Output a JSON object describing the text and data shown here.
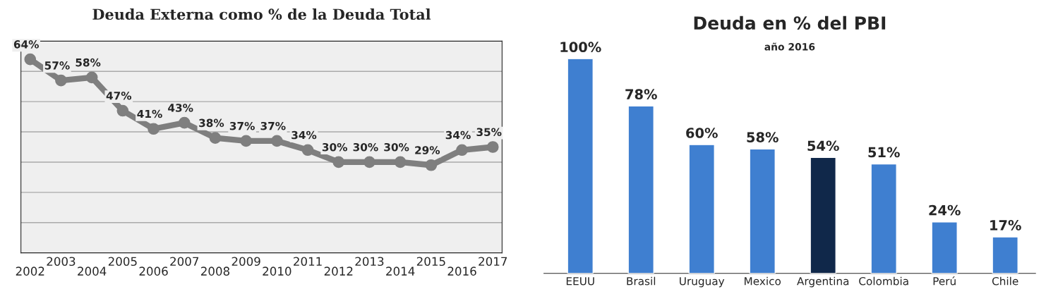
{
  "chart_data": [
    {
      "type": "line",
      "title": "Deuda Externa como % de la Deuda Total",
      "categories": [
        "2002",
        "2003",
        "2004",
        "2005",
        "2006",
        "2007",
        "2008",
        "2009",
        "2010",
        "2011",
        "2012",
        "2013",
        "2014",
        "2015",
        "2016",
        "2017"
      ],
      "series": [
        {
          "color": "#7f7f7f",
          "values": [
            64,
            57,
            58,
            47,
            41,
            43,
            38,
            37,
            37,
            34,
            30,
            30,
            30,
            29,
            34,
            35
          ],
          "value_labels": [
            "64%",
            "57%",
            "58%",
            "47%",
            "41%",
            "43%",
            "38%",
            "37%",
            "37%",
            "34%",
            "30%",
            "30%",
            "30%",
            "29%",
            "34%",
            "35%"
          ]
        }
      ],
      "ylim": [
        0,
        70
      ],
      "yticks": [
        {
          "value": 0,
          "label": null
        },
        {
          "value": 10,
          "label": null
        },
        {
          "value": 20,
          "label": null
        },
        {
          "value": 30,
          "label": null
        },
        {
          "value": 40,
          "label": null
        },
        {
          "value": 50,
          "label": null
        },
        {
          "value": 60,
          "label": null
        },
        {
          "value": 70,
          "label": null
        }
      ],
      "grid": "y",
      "marker": "circle",
      "line_style": "solid",
      "tick_labels": "x"
    },
    {
      "type": "bar",
      "title": "Deuda en % del PBI",
      "subtitle": "año 2016",
      "categories": [
        "EEUU",
        "Brasil",
        "Uruguay",
        "Mexico",
        "Argentina",
        "Colombia",
        "Perú",
        "Chile"
      ],
      "values": [
        100,
        78,
        60,
        58,
        54,
        51,
        24,
        17
      ],
      "colors": [
        "#3f7fd0",
        "#3f7fd0",
        "#3f7fd0",
        "#3f7fd0",
        "#10284a",
        "#3f7fd0",
        "#3f7fd0",
        "#3f7fd0"
      ],
      "value_labels": [
        "100%",
        "78%",
        "60%",
        "58%",
        "54%",
        "51%",
        "24%",
        "17%"
      ],
      "tick_labels": "x"
    }
  ]
}
